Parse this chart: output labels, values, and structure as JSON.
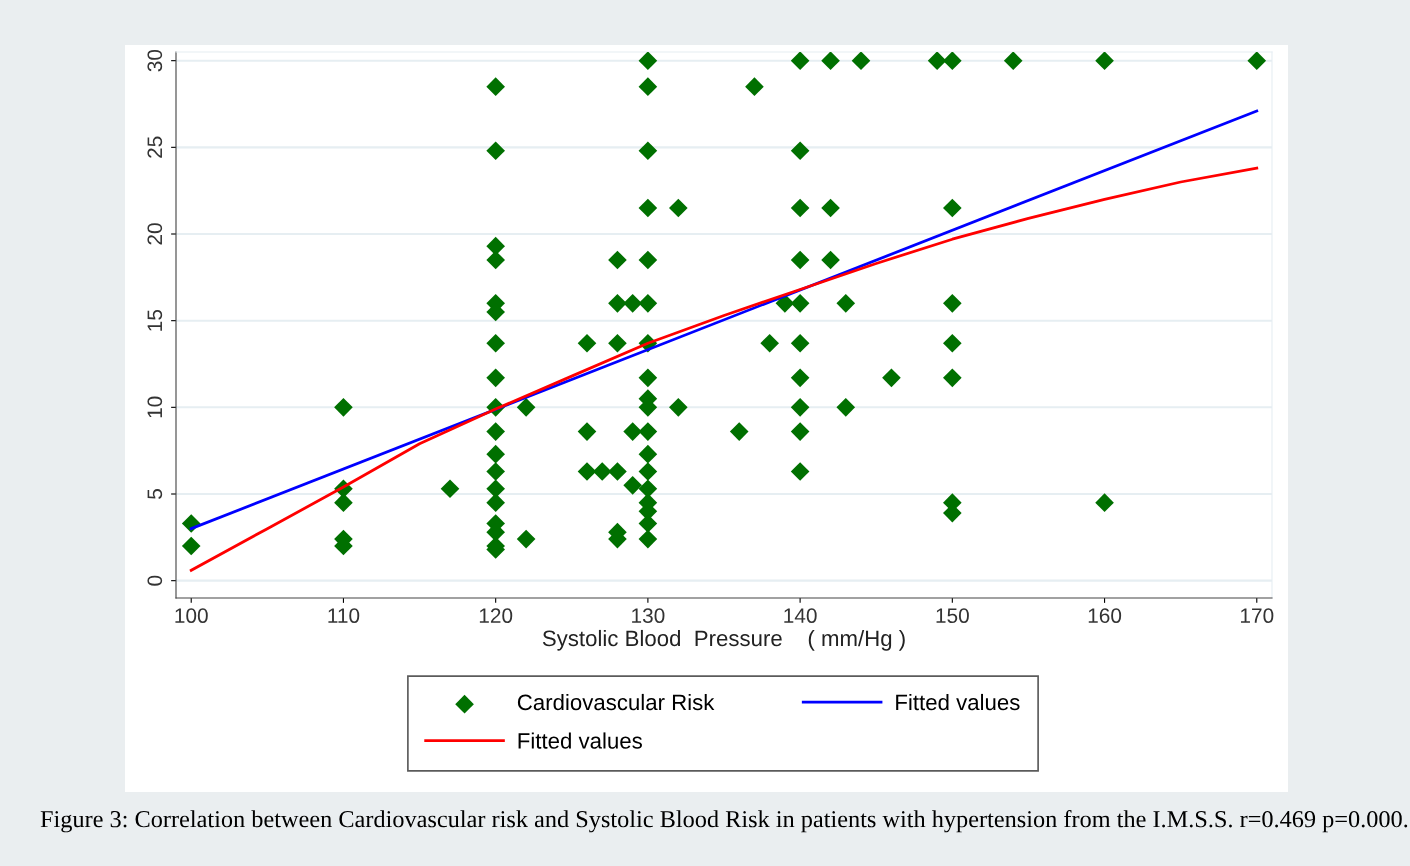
{
  "chart_data": {
    "type": "scatter",
    "xlabel": "Systolic Blood  Pressure    ( mm/Hg )",
    "xlim": [
      99,
      171
    ],
    "xticks": [
      100,
      110,
      120,
      130,
      140,
      150,
      160,
      170
    ],
    "ylim": [
      -1,
      30.5
    ],
    "yticks": [
      0,
      5,
      10,
      15,
      20,
      25,
      30
    ],
    "grid": "y",
    "legend": "bottom",
    "annotations": [
      "Figure 3: Correlation between Cardiovascular risk and Systolic Blood Risk in patients with hypertension from the I.M.S.S. r=0.469 p=0.000."
    ],
    "series": [
      {
        "name": "Cardiovascular Risk",
        "marker": "diamond",
        "color": "#007000",
        "x": [
          100,
          100,
          110,
          110,
          110,
          110,
          110,
          117,
          120,
          120,
          120,
          120,
          120,
          120,
          120,
          120,
          120,
          120,
          120,
          120,
          120,
          120,
          120,
          120,
          120,
          120,
          122,
          122,
          126,
          126,
          126,
          127,
          128,
          128,
          128,
          128,
          128,
          128,
          129,
          129,
          129,
          130,
          130,
          130,
          130,
          130,
          130,
          130,
          130,
          130,
          130,
          130,
          130,
          130,
          130,
          130,
          130,
          130,
          130,
          132,
          132,
          136,
          137,
          138,
          139,
          140,
          140,
          140,
          140,
          140,
          140,
          140,
          140,
          140,
          140,
          142,
          142,
          142,
          143,
          143,
          144,
          146,
          149,
          150,
          150,
          150,
          150,
          150,
          150,
          150,
          154,
          160,
          160,
          170
        ],
        "values": [
          3.3,
          2.0,
          10.0,
          5.3,
          4.5,
          2.4,
          2.0,
          5.3,
          28.5,
          24.8,
          19.3,
          18.5,
          16.0,
          15.5,
          13.7,
          11.7,
          10.0,
          8.6,
          7.3,
          6.3,
          5.3,
          4.5,
          3.3,
          2.8,
          2.0,
          1.8,
          10.0,
          2.4,
          13.7,
          8.6,
          6.3,
          6.3,
          18.5,
          16.0,
          13.7,
          6.3,
          2.8,
          2.4,
          16.0,
          8.6,
          5.5,
          30,
          28.5,
          24.8,
          21.5,
          18.5,
          16.0,
          13.7,
          11.7,
          10.5,
          10.0,
          8.6,
          7.3,
          6.3,
          5.3,
          4.5,
          4.0,
          3.3,
          2.4,
          21.5,
          10.0,
          8.6,
          28.5,
          13.7,
          16.0,
          30,
          24.8,
          21.5,
          18.5,
          16.0,
          13.7,
          11.7,
          10.0,
          8.6,
          6.3,
          30,
          21.5,
          18.5,
          16.0,
          10.0,
          30,
          11.7,
          30,
          30,
          21.5,
          16.0,
          13.7,
          11.7,
          4.5,
          3.9,
          30,
          30,
          4.5,
          30
        ]
      },
      {
        "name": "Fitted values",
        "type": "line",
        "marker": "none",
        "color": "#0000ff",
        "x": [
          100,
          170
        ],
        "values": [
          3.0,
          27.1
        ]
      },
      {
        "name": "Fitted values",
        "type": "line",
        "marker": "none",
        "color": "#ff0000",
        "x": [
          100,
          105,
          110,
          115,
          120,
          125,
          130,
          135,
          140,
          145,
          150,
          155,
          160,
          165,
          170
        ],
        "values": [
          0.6,
          3.0,
          5.4,
          7.9,
          9.9,
          11.8,
          13.7,
          15.3,
          16.8,
          18.3,
          19.7,
          20.9,
          22.0,
          23.0,
          23.8
        ]
      }
    ]
  }
}
